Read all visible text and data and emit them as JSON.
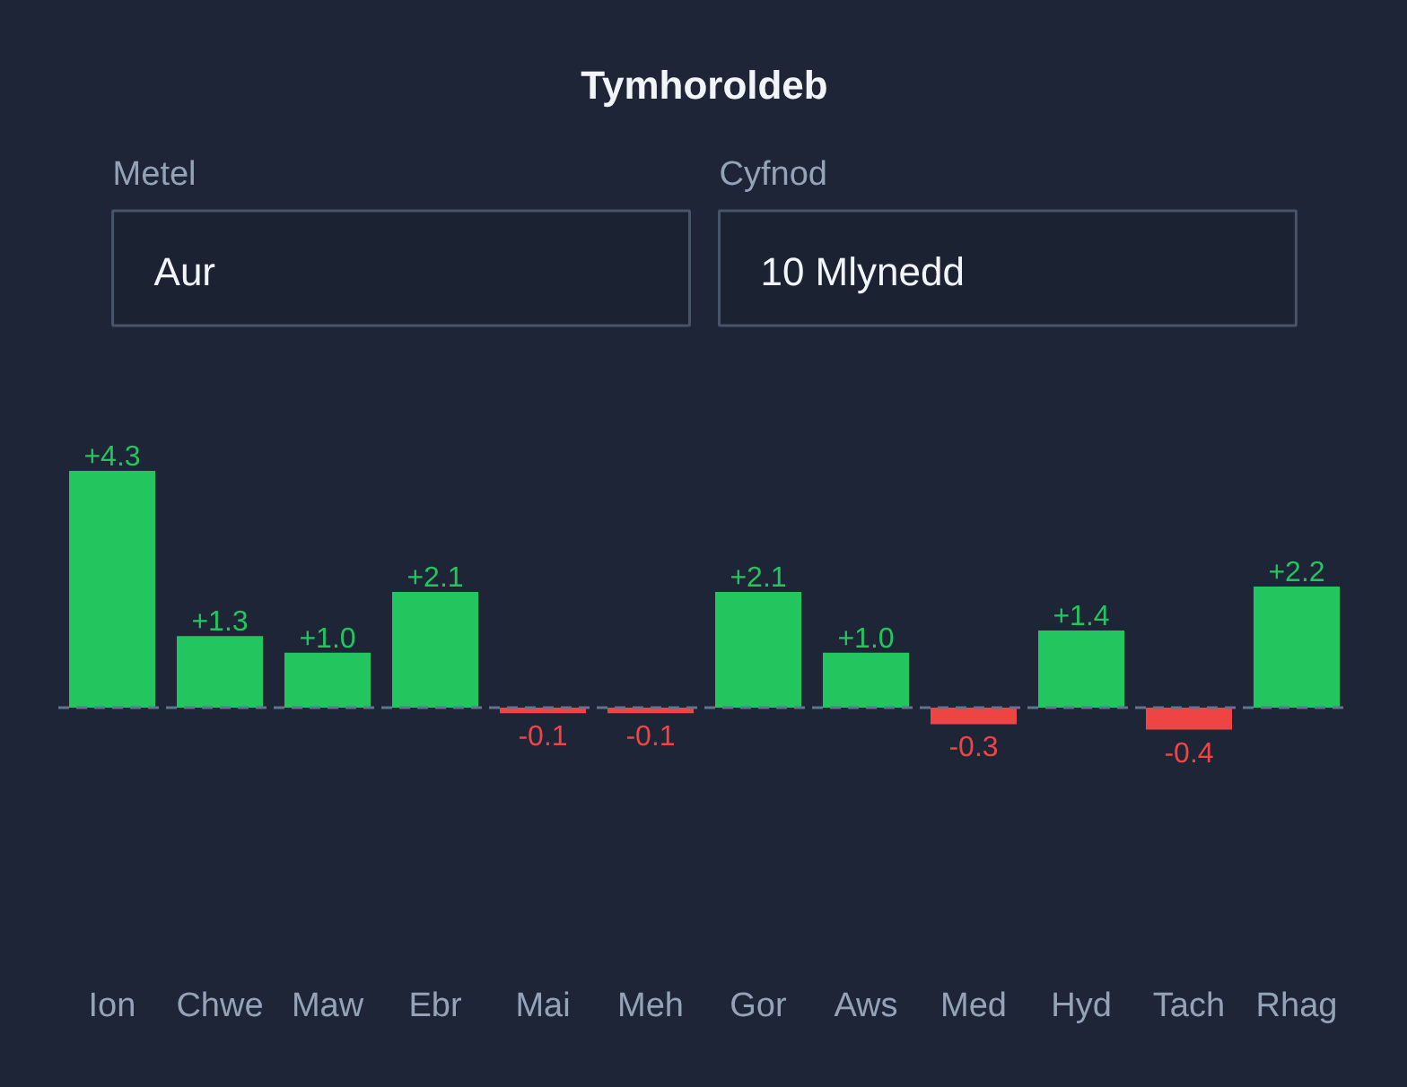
{
  "chart_data": {
    "type": "bar",
    "title": "Tymhoroldeb",
    "annotations": [
      "Metel",
      "Aur",
      "Cyfnod",
      "10 Mlynedd"
    ],
    "categories": [
      "Ion",
      "Chwe",
      "Maw",
      "Ebr",
      "Mai",
      "Meh",
      "Gor",
      "Aws",
      "Med",
      "Hyd",
      "Tach",
      "Rhag"
    ],
    "values": [
      4.3,
      1.3,
      1.0,
      2.1,
      -0.1,
      -0.1,
      2.1,
      1.0,
      -0.3,
      1.4,
      -0.4,
      2.2
    ],
    "value_labels": [
      "+4.3",
      "+1.3",
      "+1.0",
      "+2.1",
      "-0.1",
      "-0.1",
      "+2.1",
      "+1.0",
      "-0.3",
      "+1.4",
      "-0.4",
      "+2.2"
    ],
    "colors": [
      "#22c55e",
      "#22c55e",
      "#22c55e",
      "#22c55e",
      "#ef4444",
      "#ef4444",
      "#22c55e",
      "#22c55e",
      "#ef4444",
      "#22c55e",
      "#ef4444",
      "#22c55e"
    ],
    "ref_lines": [
      {
        "axis": "y",
        "value": 0,
        "color": "#64748b",
        "line_style": "dashed"
      }
    ],
    "grid": false
  }
}
